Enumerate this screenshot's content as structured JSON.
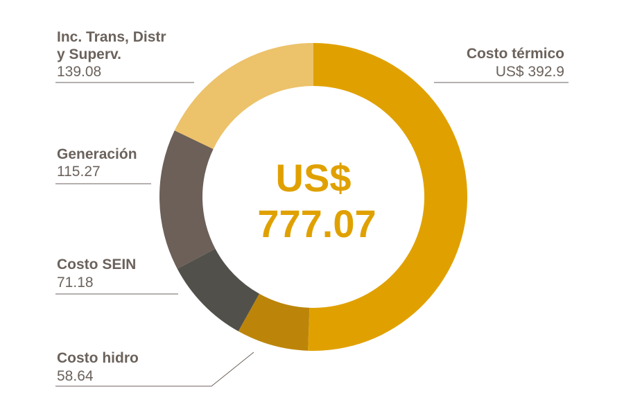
{
  "chart_data": {
    "type": "pie",
    "center_label": {
      "line1": "US$",
      "line2": "777.07"
    },
    "slices": [
      {
        "name": "Costo térmico",
        "name_lines": [
          "Costo térmico"
        ],
        "value": 392.9,
        "value_label": "US$ 392.9",
        "color": "#e0a100"
      },
      {
        "name": "Costo hidro",
        "name_lines": [
          "Costo hidro"
        ],
        "value": 58.64,
        "value_label": "58.64",
        "color": "#bc850a"
      },
      {
        "name": "Costo SEIN",
        "name_lines": [
          "Costo SEIN"
        ],
        "value": 71.18,
        "value_label": "71.18",
        "color": "#52504a"
      },
      {
        "name": "Generación",
        "name_lines": [
          "Generación"
        ],
        "value": 115.27,
        "value_label": "115.27",
        "color": "#6c6059"
      },
      {
        "name": "Inc. Trans, Distr y Superv.",
        "name_lines": [
          "Inc. Trans, Distr",
          "y Superv."
        ],
        "value": 139.08,
        "value_label": "139.08",
        "color": "#ecc26a"
      }
    ]
  }
}
